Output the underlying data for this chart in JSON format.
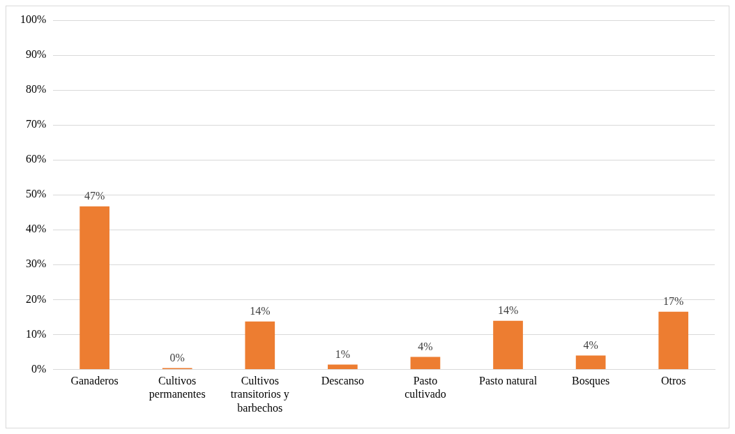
{
  "chart_data": {
    "type": "bar",
    "categories": [
      "Ganaderos",
      "Cultivos permanentes",
      "Cultivos transitorios  y barbechos",
      "Descanso",
      "Pasto cultivado",
      "Pasto natural",
      "Bosques",
      "Otros"
    ],
    "values": [
      46.7,
      0.4,
      13.7,
      1.4,
      3.6,
      13.9,
      4.0,
      16.5
    ],
    "value_labels": [
      "47%",
      "0%",
      "14%",
      "1%",
      "4%",
      "14%",
      "4%",
      "17%"
    ],
    "color": "#ed7d31",
    "ylim": [
      0,
      100
    ],
    "yticks": [
      {
        "value": 0,
        "label": "0%"
      },
      {
        "value": 10,
        "label": "10%"
      },
      {
        "value": 20,
        "label": "20%"
      },
      {
        "value": 30,
        "label": "30%"
      },
      {
        "value": 40,
        "label": "40%"
      },
      {
        "value": 50,
        "label": "50%"
      },
      {
        "value": 60,
        "label": "60%"
      },
      {
        "value": 70,
        "label": "70%"
      },
      {
        "value": 80,
        "label": "80%"
      },
      {
        "value": 90,
        "label": "90%"
      },
      {
        "value": 100,
        "label": "100%"
      }
    ],
    "grid": "y",
    "legend": false
  }
}
